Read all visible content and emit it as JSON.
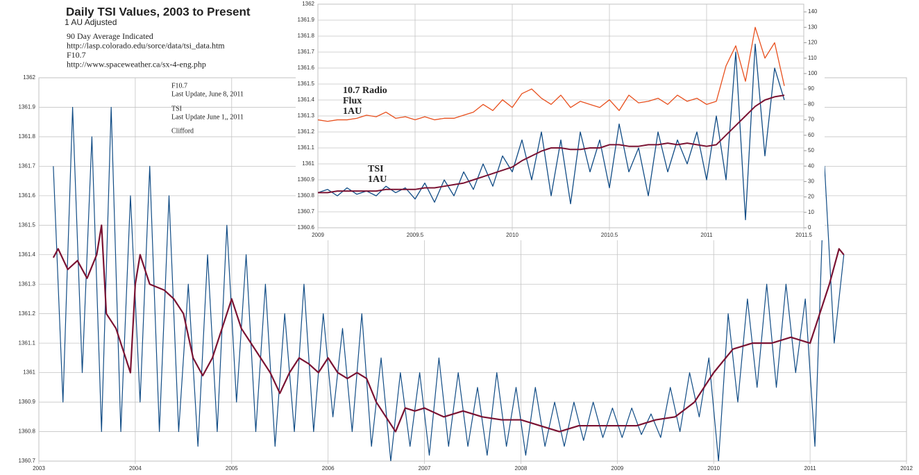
{
  "chart_data": [
    {
      "type": "line",
      "title": "Daily TSI Values, 2003 to Present",
      "subtitle": "1 AU Adjusted",
      "notes": [
        "90 Day Average Indicated",
        "http://lasp.colorado.edu/sorce/data/tsi_data.htm",
        "F10.7",
        "http://www.spaceweather.ca/sx-4-eng.php"
      ],
      "box_notes": [
        "F10.7",
        "Last Update, June 8, 2011",
        "TSI",
        "Last Update June 1,, 2011",
        "Clifford"
      ],
      "xlim": [
        2003,
        2012
      ],
      "xticks": [
        2003,
        2004,
        2005,
        2006,
        2007,
        2008,
        2009,
        2010,
        2011,
        2012
      ],
      "ylim": [
        1360.7,
        1362
      ],
      "yticks": [
        1360.7,
        1360.8,
        1360.9,
        1361,
        1361.1,
        1361.2,
        1361.3,
        1361.4,
        1361.5,
        1361.6,
        1361.7,
        1361.8,
        1361.9,
        1362
      ],
      "grid": true,
      "series": [
        {
          "color": "#114c85",
          "width": 1.2,
          "x": [
            2003.15,
            2003.25,
            2003.35,
            2003.45,
            2003.55,
            2003.65,
            2003.75,
            2003.85,
            2003.95,
            2004.05,
            2004.15,
            2004.25,
            2004.35,
            2004.45,
            2004.55,
            2004.65,
            2004.75,
            2004.85,
            2004.95,
            2005.05,
            2005.15,
            2005.25,
            2005.35,
            2005.45,
            2005.55,
            2005.65,
            2005.75,
            2005.85,
            2005.95,
            2006.05,
            2006.15,
            2006.25,
            2006.35,
            2006.45,
            2006.55,
            2006.65,
            2006.75,
            2006.85,
            2006.95,
            2007.05,
            2007.15,
            2007.25,
            2007.35,
            2007.45,
            2007.55,
            2007.65,
            2007.75,
            2007.85,
            2007.95,
            2008.05,
            2008.15,
            2008.25,
            2008.35,
            2008.45,
            2008.55,
            2008.65,
            2008.75,
            2008.85,
            2008.95,
            2009.05,
            2009.15,
            2009.25,
            2009.35,
            2009.45,
            2009.55,
            2009.65,
            2009.75,
            2009.85,
            2009.95,
            2010.05,
            2010.15,
            2010.25,
            2010.35,
            2010.45,
            2010.55,
            2010.65,
            2010.75,
            2010.85,
            2010.95,
            2011.05,
            2011.15,
            2011.25,
            2011.35
          ],
          "values": [
            1361.7,
            1360.9,
            1361.9,
            1361.0,
            1361.8,
            1360.8,
            1361.9,
            1360.8,
            1361.6,
            1360.9,
            1361.7,
            1360.8,
            1361.6,
            1360.8,
            1361.3,
            1360.75,
            1361.4,
            1360.8,
            1361.5,
            1360.9,
            1361.4,
            1360.8,
            1361.3,
            1360.75,
            1361.2,
            1360.8,
            1361.3,
            1360.8,
            1361.2,
            1360.85,
            1361.15,
            1360.8,
            1361.2,
            1360.75,
            1361.05,
            1360.7,
            1361.0,
            1360.75,
            1361.0,
            1360.72,
            1361.05,
            1360.75,
            1361.0,
            1360.75,
            1360.95,
            1360.72,
            1361.0,
            1360.75,
            1360.95,
            1360.72,
            1360.95,
            1360.75,
            1360.9,
            1360.75,
            1360.9,
            1360.77,
            1360.9,
            1360.78,
            1360.88,
            1360.78,
            1360.88,
            1360.79,
            1360.86,
            1360.78,
            1360.95,
            1360.8,
            1361.0,
            1360.85,
            1361.05,
            1360.7,
            1361.2,
            1360.9,
            1361.25,
            1360.95,
            1361.3,
            1360.95,
            1361.3,
            1361.0,
            1361.25,
            1360.75,
            1361.7,
            1361.1,
            1361.4
          ]
        },
        {
          "color": "#7a1232",
          "width": 2.2,
          "x": [
            2003.15,
            2003.2,
            2003.3,
            2003.4,
            2003.5,
            2003.6,
            2003.65,
            2003.7,
            2003.8,
            2003.9,
            2003.95,
            2004.0,
            2004.05,
            2004.15,
            2004.3,
            2004.4,
            2004.5,
            2004.6,
            2004.7,
            2004.8,
            2004.9,
            2005.0,
            2005.1,
            2005.2,
            2005.3,
            2005.4,
            2005.5,
            2005.6,
            2005.7,
            2005.8,
            2005.9,
            2006.0,
            2006.1,
            2006.2,
            2006.3,
            2006.4,
            2006.5,
            2006.6,
            2006.7,
            2006.8,
            2006.9,
            2007.0,
            2007.2,
            2007.4,
            2007.6,
            2007.8,
            2008.0,
            2008.2,
            2008.4,
            2008.6,
            2008.8,
            2009.0,
            2009.2,
            2009.4,
            2009.6,
            2009.8,
            2010.0,
            2010.2,
            2010.4,
            2010.6,
            2010.8,
            2011.0,
            2011.1,
            2011.2,
            2011.3,
            2011.35
          ],
          "values": [
            1361.39,
            1361.42,
            1361.35,
            1361.38,
            1361.32,
            1361.4,
            1361.5,
            1361.2,
            1361.15,
            1361.05,
            1361.0,
            1361.3,
            1361.4,
            1361.3,
            1361.28,
            1361.25,
            1361.2,
            1361.05,
            1360.99,
            1361.05,
            1361.15,
            1361.25,
            1361.15,
            1361.1,
            1361.05,
            1361.0,
            1360.93,
            1361.0,
            1361.05,
            1361.03,
            1361.0,
            1361.05,
            1361.0,
            1360.98,
            1361.0,
            1360.98,
            1360.9,
            1360.85,
            1360.8,
            1360.88,
            1360.87,
            1360.88,
            1360.85,
            1360.87,
            1360.85,
            1360.84,
            1360.84,
            1360.82,
            1360.8,
            1360.82,
            1360.82,
            1360.82,
            1360.82,
            1360.84,
            1360.85,
            1360.9,
            1361.0,
            1361.08,
            1361.1,
            1361.1,
            1361.12,
            1361.1,
            1361.2,
            1361.3,
            1361.42,
            1361.4
          ]
        }
      ]
    },
    {
      "type": "line",
      "annotations": [
        {
          "lines": [
            "10.7 Radio",
            "Flux",
            "1AU"
          ],
          "color": "#e01010"
        },
        {
          "lines": [
            "TSI",
            "1AU"
          ],
          "color": "#1a4f80"
        }
      ],
      "xlim": [
        2009,
        2011.5
      ],
      "xticks": [
        2009,
        2009.5,
        2010,
        2010.5,
        2011,
        2011.5
      ],
      "ylim": [
        1360.6,
        1362
      ],
      "yticks": [
        1360.6,
        1360.7,
        1360.8,
        1360.9,
        1361,
        1361.1,
        1361.2,
        1361.3,
        1361.4,
        1361.5,
        1361.6,
        1361.7,
        1361.8,
        1361.9,
        1362
      ],
      "y2lim": [
        0,
        145
      ],
      "y2ticks": [
        0,
        10,
        20,
        30,
        40,
        50,
        60,
        70,
        80,
        90,
        100,
        110,
        120,
        130,
        140
      ],
      "grid": true,
      "x": [
        2009.0,
        2009.05,
        2009.1,
        2009.15,
        2009.2,
        2009.25,
        2009.3,
        2009.35,
        2009.4,
        2009.45,
        2009.5,
        2009.55,
        2009.6,
        2009.65,
        2009.7,
        2009.75,
        2009.8,
        2009.85,
        2009.9,
        2009.95,
        2010.0,
        2010.05,
        2010.1,
        2010.15,
        2010.2,
        2010.25,
        2010.3,
        2010.35,
        2010.4,
        2010.45,
        2010.5,
        2010.55,
        2010.6,
        2010.65,
        2010.7,
        2010.75,
        2010.8,
        2010.85,
        2010.9,
        2010.95,
        2011.0,
        2011.05,
        2011.1,
        2011.15,
        2011.2,
        2011.25,
        2011.3,
        2011.35,
        2011.4
      ],
      "series": [
        {
          "color": "#e8501e",
          "width": 1.3,
          "axis": "y2",
          "values": [
            70,
            69,
            70,
            70,
            71,
            73,
            72,
            75,
            71,
            72,
            70,
            72,
            70,
            71,
            71,
            73,
            75,
            80,
            76,
            83,
            78,
            87,
            90,
            84,
            80,
            86,
            78,
            82,
            80,
            78,
            83,
            76,
            86,
            81,
            82,
            84,
            80,
            86,
            82,
            84,
            80,
            82,
            105,
            118,
            95,
            130,
            110,
            120,
            92
          ]
        },
        {
          "color": "#114c85",
          "width": 1.3,
          "values": [
            1360.82,
            1360.84,
            1360.8,
            1360.85,
            1360.81,
            1360.83,
            1360.8,
            1360.86,
            1360.82,
            1360.85,
            1360.78,
            1360.88,
            1360.76,
            1360.9,
            1360.8,
            1360.95,
            1360.84,
            1361.0,
            1360.86,
            1361.05,
            1360.95,
            1361.15,
            1360.9,
            1361.2,
            1360.8,
            1361.15,
            1360.75,
            1361.2,
            1360.95,
            1361.15,
            1360.85,
            1361.25,
            1360.95,
            1361.1,
            1360.8,
            1361.2,
            1360.95,
            1361.15,
            1361.0,
            1361.2,
            1360.9,
            1361.3,
            1360.9,
            1361.7,
            1360.65,
            1361.75,
            1361.05,
            1361.6,
            1361.4
          ]
        },
        {
          "color": "#7a1232",
          "width": 2,
          "values": [
            1360.82,
            1360.82,
            1360.83,
            1360.83,
            1360.83,
            1360.83,
            1360.83,
            1360.84,
            1360.84,
            1360.84,
            1360.84,
            1360.85,
            1360.85,
            1360.86,
            1360.87,
            1360.88,
            1360.9,
            1360.92,
            1360.94,
            1360.96,
            1360.98,
            1361.02,
            1361.05,
            1361.08,
            1361.1,
            1361.1,
            1361.09,
            1361.09,
            1361.1,
            1361.1,
            1361.12,
            1361.12,
            1361.11,
            1361.11,
            1361.12,
            1361.12,
            1361.13,
            1361.12,
            1361.13,
            1361.12,
            1361.11,
            1361.12,
            1361.18,
            1361.24,
            1361.3,
            1361.36,
            1361.4,
            1361.42,
            1361.43
          ]
        }
      ]
    }
  ]
}
